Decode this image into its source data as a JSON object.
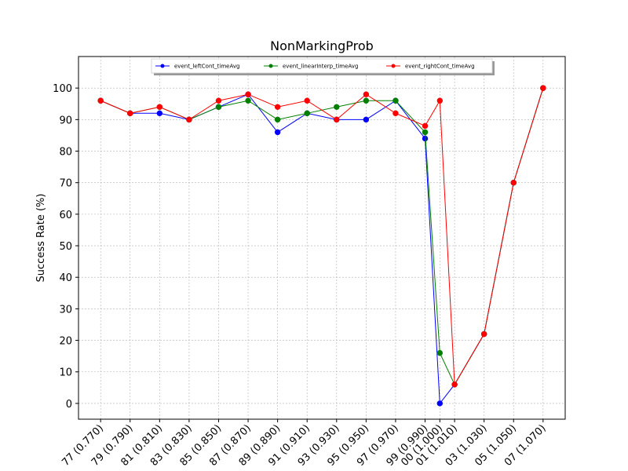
{
  "chart_data": {
    "type": "line",
    "title": "NonMarkingProb",
    "xlabel": "",
    "ylabel": "Success Rate (%)",
    "ylim": [
      -5,
      110
    ],
    "yticks": [
      0,
      10,
      20,
      30,
      40,
      50,
      60,
      70,
      80,
      90,
      100
    ],
    "grid": true,
    "legend_position": "top-center",
    "x_tick_positions": [
      0.77,
      0.79,
      0.81,
      0.83,
      0.85,
      0.87,
      0.89,
      0.91,
      0.93,
      0.95,
      0.97,
      0.99,
      1.0,
      1.01,
      1.03,
      1.05,
      1.07
    ],
    "x_tick_labels": [
      "77 (0.770)",
      "79 (0.790)",
      "81 (0.810)",
      "83 (0.830)",
      "85 (0.850)",
      "87 (0.870)",
      "89 (0.890)",
      "91 (0.910)",
      "93 (0.930)",
      "95 (0.950)",
      "97 (0.970)",
      "99 (0.990)",
      "00 (1.000)",
      "01 (1.010)",
      "03 (1.030)",
      "05 (1.050)",
      "07 (1.070)"
    ],
    "xlim": [
      0.755,
      1.085
    ],
    "series": [
      {
        "name": "event_leftCont_timeAvg",
        "color": "#0000ff",
        "x": [
          0.77,
          0.79,
          0.81,
          0.83,
          0.85,
          0.87,
          0.89,
          0.91,
          0.93,
          0.95,
          0.97,
          0.99,
          1.0,
          1.01,
          1.03,
          1.05,
          1.07
        ],
        "y": [
          96,
          92,
          92,
          90,
          94,
          98,
          86,
          92,
          90,
          90,
          96,
          84,
          0,
          6,
          22,
          70,
          100
        ]
      },
      {
        "name": "event_linearInterp_timeAvg",
        "color": "#008000",
        "x": [
          0.77,
          0.79,
          0.81,
          0.83,
          0.85,
          0.87,
          0.89,
          0.91,
          0.93,
          0.95,
          0.97,
          0.99,
          1.0,
          1.01,
          1.03,
          1.05,
          1.07
        ],
        "y": [
          96,
          92,
          94,
          90,
          94,
          96,
          90,
          92,
          94,
          96,
          96,
          86,
          16,
          6,
          22,
          70,
          100
        ]
      },
      {
        "name": "event_rightCont_timeAvg",
        "color": "#ff0000",
        "x": [
          0.77,
          0.79,
          0.81,
          0.83,
          0.85,
          0.87,
          0.89,
          0.91,
          0.93,
          0.95,
          0.97,
          0.99,
          1.0,
          1.01,
          1.03,
          1.05,
          1.07
        ],
        "y": [
          96,
          92,
          94,
          90,
          96,
          98,
          94,
          96,
          90,
          98,
          92,
          88,
          96,
          6,
          22,
          70,
          100
        ]
      }
    ]
  }
}
